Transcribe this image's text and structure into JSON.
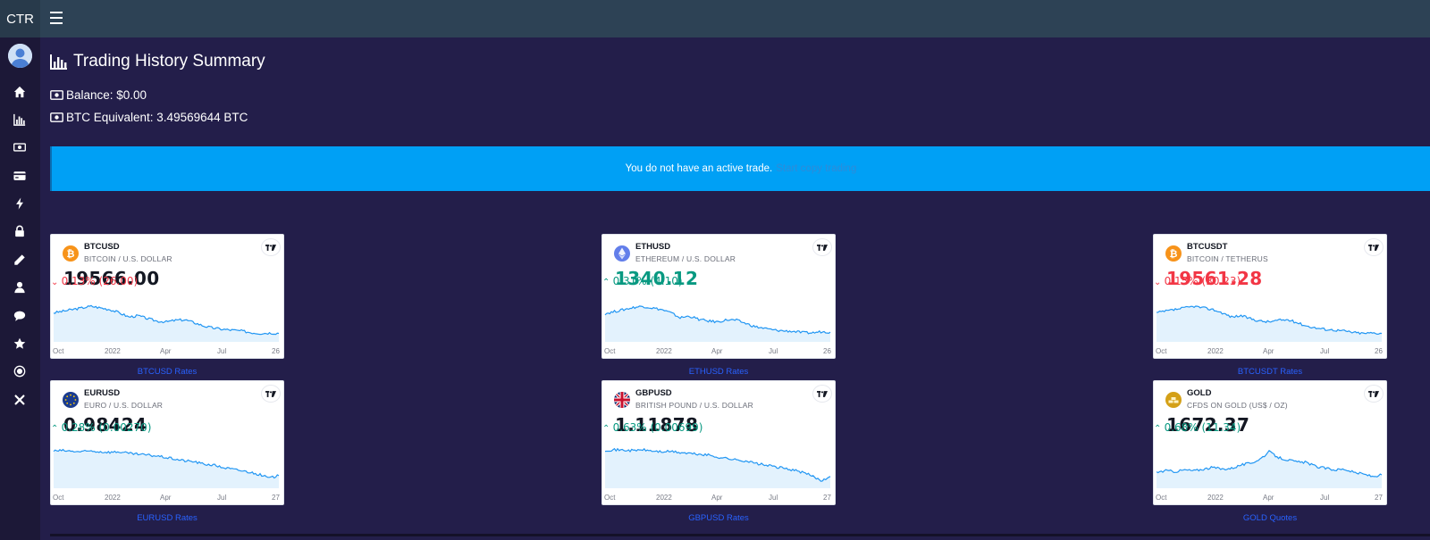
{
  "brand": "CTR",
  "page": {
    "title": "Trading History Summary",
    "balance": "Balance: $0.00",
    "btc_equivalent": "BTC Equivalent: 3.49569644 BTC"
  },
  "alert": {
    "message": "You do not have an active trade.",
    "link": "Start copy trading"
  },
  "sidebar": {
    "icons": [
      "home-icon",
      "chart-icon",
      "money-icon",
      "credit-card-icon",
      "bolt-icon",
      "lock-icon",
      "pencil-icon",
      "user-icon",
      "comment-icon",
      "star-icon",
      "target-icon",
      "close-icon"
    ]
  },
  "colors": {
    "up": "#089981",
    "down": "#f23645",
    "line": "#2196f3",
    "fill": "#e3f2fd",
    "alert": "#00a0f5"
  },
  "tickers": [
    {
      "symbol": "BTCUSD",
      "description": "BITCOIN / U.S. DOLLAR",
      "price": "19566.00",
      "price_color": "neutral",
      "change": "0.13% (26.00)",
      "direction": "down",
      "icon": "bitcoin-icon",
      "axis": [
        "Oct",
        "2022",
        "Apr",
        "Jul",
        "26"
      ],
      "link": "BTCUSD Rates",
      "series": [
        0.62,
        0.66,
        0.7,
        0.74,
        0.78,
        0.74,
        0.7,
        0.62,
        0.52,
        0.55,
        0.48,
        0.42,
        0.4,
        0.44,
        0.45,
        0.38,
        0.3,
        0.25,
        0.22,
        0.2,
        0.18,
        0.14,
        0.12,
        0.13,
        0.12
      ]
    },
    {
      "symbol": "ETHUSD",
      "description": "ETHEREUM / U.S. DOLLAR",
      "price": "1340.12",
      "price_color": "up",
      "change": "0.31% (4.10)",
      "direction": "up",
      "icon": "ethereum-icon",
      "axis": [
        "Oct",
        "2022",
        "Apr",
        "Jul",
        "26"
      ],
      "link": "ETHUSD Rates",
      "series": [
        0.6,
        0.65,
        0.7,
        0.75,
        0.78,
        0.74,
        0.7,
        0.62,
        0.5,
        0.54,
        0.46,
        0.42,
        0.4,
        0.45,
        0.44,
        0.36,
        0.28,
        0.24,
        0.2,
        0.18,
        0.17,
        0.14,
        0.13,
        0.16,
        0.15
      ]
    },
    {
      "symbol": "BTCUSDT",
      "description": "BITCOIN / TETHERUS",
      "price": "19561.28",
      "price_color": "down",
      "change": "0.15% (30.23)",
      "direction": "down",
      "icon": "bitcoin-icon",
      "axis": [
        "Oct",
        "2022",
        "Apr",
        "Jul",
        "26"
      ],
      "link": "BTCUSDT Rates",
      "series": [
        0.62,
        0.66,
        0.7,
        0.74,
        0.78,
        0.74,
        0.7,
        0.62,
        0.52,
        0.55,
        0.48,
        0.42,
        0.4,
        0.44,
        0.45,
        0.38,
        0.3,
        0.25,
        0.22,
        0.2,
        0.18,
        0.14,
        0.12,
        0.13,
        0.12
      ]
    },
    {
      "symbol": "EURUSD",
      "description": "EURO / U.S. DOLLAR",
      "price": "0.98424",
      "price_color": "neutral",
      "change": "0.28% (0.00270)",
      "direction": "up",
      "icon": "euro-flag-icon",
      "axis": [
        "Oct",
        "2022",
        "Apr",
        "Jul",
        "27"
      ],
      "link": "EURUSD Rates",
      "series": [
        0.82,
        0.83,
        0.81,
        0.8,
        0.82,
        0.8,
        0.79,
        0.8,
        0.76,
        0.74,
        0.72,
        0.7,
        0.66,
        0.62,
        0.58,
        0.56,
        0.5,
        0.48,
        0.42,
        0.38,
        0.34,
        0.3,
        0.24,
        0.16,
        0.22
      ]
    },
    {
      "symbol": "GBPUSD",
      "description": "BRITISH POUND / U.S. DOLLAR",
      "price": "1.11878",
      "price_color": "neutral",
      "change": "0.63% (0.00699)",
      "direction": "up",
      "icon": "uk-flag-icon",
      "axis": [
        "Oct",
        "2022",
        "Apr",
        "Jul",
        "27"
      ],
      "link": "GBPUSD Rates",
      "series": [
        0.84,
        0.85,
        0.84,
        0.83,
        0.85,
        0.82,
        0.8,
        0.81,
        0.78,
        0.76,
        0.74,
        0.72,
        0.67,
        0.64,
        0.6,
        0.58,
        0.52,
        0.48,
        0.44,
        0.4,
        0.36,
        0.3,
        0.22,
        0.1,
        0.2
      ]
    },
    {
      "symbol": "GOLD",
      "description": "CFDS ON GOLD (US$ / OZ)",
      "price": "1672.37",
      "price_color": "neutral",
      "change": "0.68% (11.34)",
      "direction": "up",
      "icon": "gold-icon",
      "axis": [
        "Oct",
        "2022",
        "Apr",
        "Jul",
        "27"
      ],
      "link": "GOLD Quotes",
      "series": [
        0.3,
        0.34,
        0.32,
        0.36,
        0.34,
        0.38,
        0.42,
        0.38,
        0.4,
        0.48,
        0.52,
        0.62,
        0.8,
        0.66,
        0.6,
        0.55,
        0.54,
        0.44,
        0.4,
        0.36,
        0.38,
        0.3,
        0.26,
        0.2,
        0.24
      ]
    }
  ]
}
